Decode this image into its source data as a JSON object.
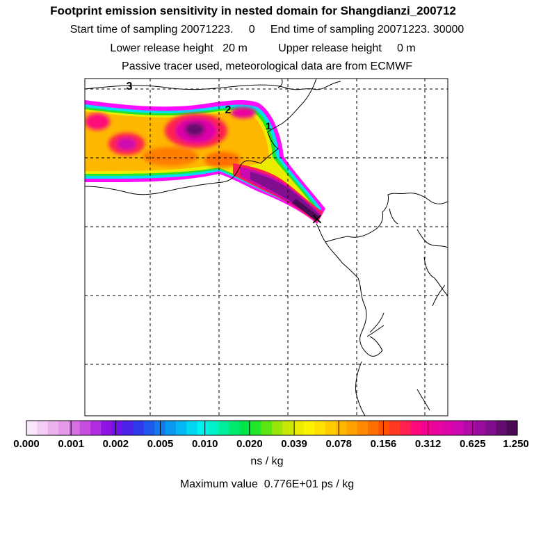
{
  "title": {
    "line1": "Footprint emission sensitivity in nested domain for Shangdianzi_200712",
    "line2": "Start time of sampling 20071223.     0     End time of sampling 20071223. 30000",
    "line3": "Lower release height   20 m          Upper release height     0 m",
    "line4": "Passive tracer used, meteorological data are from ECMWF"
  },
  "map": {
    "time_markers": [
      "3",
      "2",
      "1"
    ],
    "release_site_marker": "×"
  },
  "colorbar": {
    "colors": [
      "#fbe7fb",
      "#f4cdf4",
      "#edb3ee",
      "#e69ae9",
      "#d66fe3",
      "#c74ddc",
      "#b02ee0",
      "#9013e6",
      "#6d12e8",
      "#4b22ea",
      "#2f39ea",
      "#1f58ec",
      "#1479ef",
      "#0a99f0",
      "#03b8f2",
      "#00d6f0",
      "#00f2f0",
      "#00f2c8",
      "#00ee9c",
      "#00ea72",
      "#00e548",
      "#22e62a",
      "#5ee612",
      "#99e60a",
      "#c8e805",
      "#ecec00",
      "#fff200",
      "#ffe000",
      "#ffcc00",
      "#ffb800",
      "#ffa200",
      "#ff8a00",
      "#ff6f00",
      "#ff5200",
      "#ff3a24",
      "#ff2050",
      "#ff0a7a",
      "#f50494",
      "#e9049e",
      "#dc04a8",
      "#cc08b0",
      "#b40aa8",
      "#9a0c9e",
      "#800e8e",
      "#650c70",
      "#4a0a52"
    ],
    "labels": [
      "0.000",
      "0.001",
      "0.002",
      "0.005",
      "0.010",
      "0.020",
      "0.039",
      "0.078",
      "0.156",
      "0.312",
      "0.625",
      "1.250"
    ],
    "unit": "ns / kg"
  },
  "max_value": "Maximum value  0.776E+01 ps / kg"
}
